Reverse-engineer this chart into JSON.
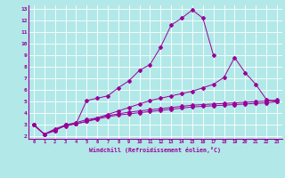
{
  "xlabel": "Windchill (Refroidissement éolien,°C)",
  "bg_color": "#b2e8e8",
  "grid_color": "#ffffff",
  "line_color": "#990099",
  "xlim": [
    -0.5,
    23.5
  ],
  "ylim": [
    1.8,
    13.3
  ],
  "xticks": [
    0,
    1,
    2,
    3,
    4,
    5,
    6,
    7,
    8,
    9,
    10,
    11,
    12,
    13,
    14,
    15,
    16,
    17,
    18,
    19,
    20,
    21,
    22,
    23
  ],
  "yticks": [
    2,
    3,
    4,
    5,
    6,
    7,
    8,
    9,
    10,
    11,
    12,
    13
  ],
  "line1_x": [
    0,
    1,
    2,
    3,
    4,
    5,
    6,
    7,
    8,
    9,
    10,
    11,
    12,
    13,
    14,
    15,
    16,
    17
  ],
  "line1_y": [
    3.0,
    2.2,
    2.5,
    3.0,
    3.1,
    5.1,
    5.3,
    5.5,
    6.2,
    6.8,
    7.7,
    8.2,
    9.7,
    11.6,
    12.2,
    12.9,
    12.2,
    9.0
  ],
  "line2_x": [
    0,
    1,
    2,
    3,
    4,
    5,
    6,
    7,
    8,
    9,
    10,
    11,
    12,
    13,
    14,
    15,
    16,
    17,
    18,
    19,
    20,
    21,
    22,
    23
  ],
  "line2_y": [
    3.0,
    2.2,
    2.5,
    3.0,
    3.1,
    3.3,
    3.6,
    3.9,
    4.2,
    4.5,
    4.8,
    5.1,
    5.3,
    5.5,
    5.7,
    5.9,
    6.2,
    6.5,
    7.1,
    8.8,
    7.5,
    6.5,
    5.2,
    5.0
  ],
  "line3_x": [
    0,
    1,
    2,
    3,
    4,
    5,
    6,
    7,
    8,
    9,
    10,
    11,
    12,
    13,
    14,
    15,
    16,
    17,
    18,
    19,
    20,
    21,
    22,
    23
  ],
  "line3_y": [
    3.0,
    2.2,
    2.6,
    2.9,
    3.1,
    3.3,
    3.5,
    3.7,
    3.85,
    3.95,
    4.05,
    4.15,
    4.25,
    4.35,
    4.45,
    4.55,
    4.6,
    4.65,
    4.7,
    4.75,
    4.8,
    4.85,
    4.9,
    5.0
  ],
  "line4_x": [
    0,
    1,
    2,
    3,
    4,
    5,
    6,
    7,
    8,
    9,
    10,
    11,
    12,
    13,
    14,
    15,
    16,
    17,
    18,
    19,
    20,
    21,
    22,
    23
  ],
  "line4_y": [
    3.0,
    2.2,
    2.65,
    3.0,
    3.2,
    3.45,
    3.6,
    3.8,
    3.95,
    4.1,
    4.2,
    4.3,
    4.4,
    4.5,
    4.6,
    4.7,
    4.75,
    4.8,
    4.85,
    4.9,
    4.95,
    5.0,
    5.05,
    5.15
  ]
}
